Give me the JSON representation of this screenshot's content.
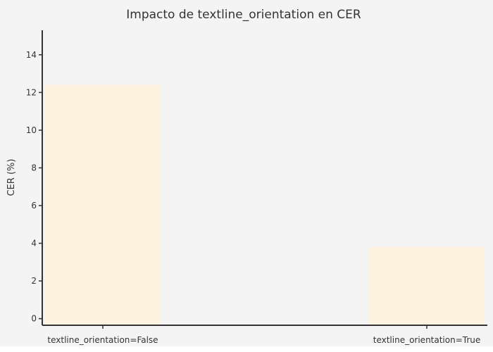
{
  "chart_data": {
    "type": "bar",
    "title": "Impacto de textline_orientation en CER",
    "xlabel": "",
    "ylabel": "CER (%)",
    "categories": [
      "textline_orientation=False",
      "textline_orientation=True"
    ],
    "values": [
      12.4,
      3.8
    ],
    "ylim": [
      -0.35,
      15.3
    ],
    "yticks": [
      0,
      2,
      4,
      6,
      8,
      10,
      12,
      14
    ],
    "grid": false,
    "bar_color": "#fdf3df",
    "background_color": "#f4f4f4",
    "axis_color": "#333333"
  }
}
